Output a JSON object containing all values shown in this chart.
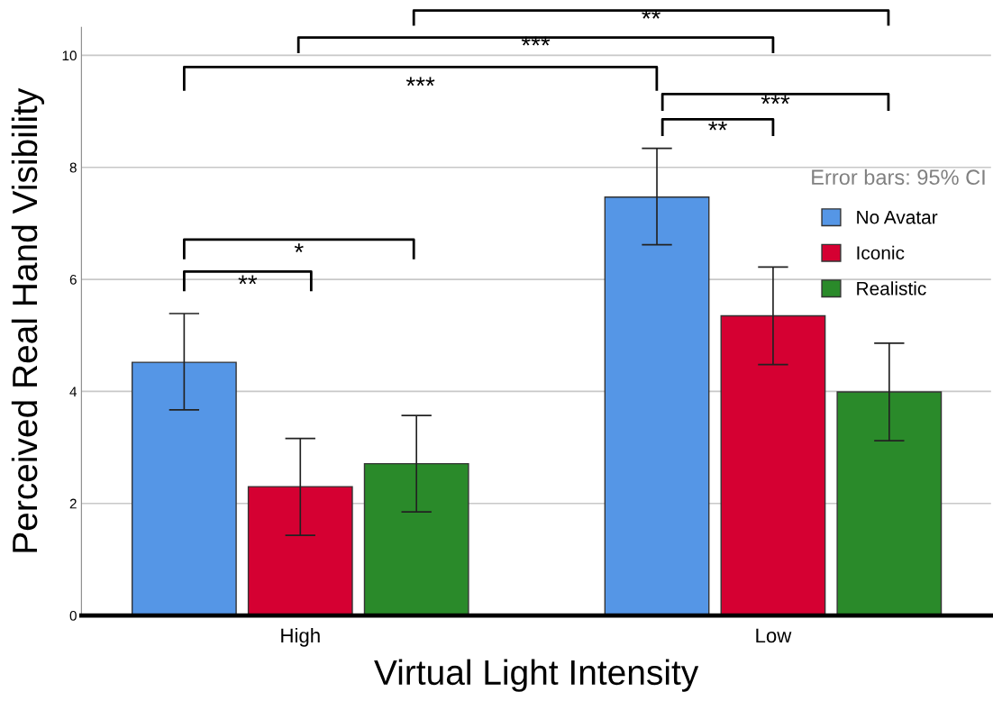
{
  "chart_data": {
    "type": "bar",
    "xlabel": "Virtual Light Intensity",
    "ylabel": "Perceived Real Hand Visibility",
    "categories": [
      "High",
      "Low"
    ],
    "series": [
      {
        "name": "No Avatar",
        "color": "#5596e6",
        "values": [
          4.52,
          7.47
        ],
        "errors": [
          [
            3.67,
            5.39
          ],
          [
            6.62,
            8.34
          ]
        ]
      },
      {
        "name": "Iconic",
        "color": "#d50032",
        "values": [
          2.3,
          5.35
        ],
        "errors": [
          [
            1.43,
            3.16
          ],
          [
            4.48,
            6.22
          ]
        ]
      },
      {
        "name": "Realistic",
        "color": "#2a8a2a",
        "values": [
          2.71,
          3.99
        ],
        "errors": [
          [
            1.85,
            3.57
          ],
          [
            3.12,
            4.86
          ]
        ]
      }
    ],
    "ylim": [
      0,
      10.5
    ],
    "yticks": [
      0,
      2,
      4,
      6,
      8,
      10
    ],
    "grid": "y",
    "legend": "right",
    "annotations": [
      "Error bars: 95% CI",
      "**",
      "***",
      "***",
      "***",
      "**",
      "*",
      "**"
    ]
  }
}
